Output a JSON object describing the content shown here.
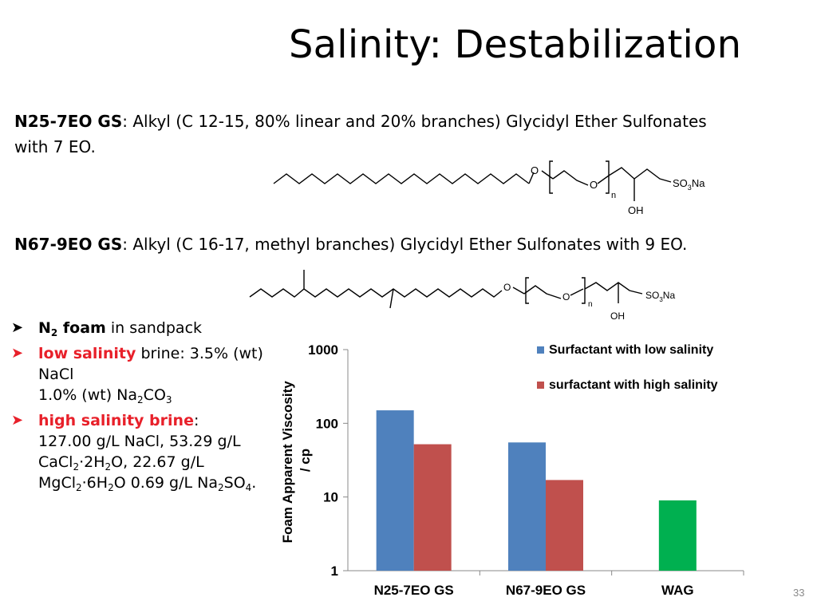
{
  "slide": {
    "title": "Salinity: Destabilization",
    "page_number": "33"
  },
  "n25": {
    "name": "N25-7EO GS",
    "desc": ": Alkyl (C 12-15, 80% linear and 20% branches) Glycidyl Ether Sulfonates",
    "desc2": "with 7 EO."
  },
  "n67": {
    "name": "N67-9EO GS",
    "desc": ": Alkyl (C 16-17, methyl branches) Glycidyl Ether Sulfonates with 9 EO."
  },
  "molecules": {
    "o": "O",
    "n": "n",
    "oh": "OH",
    "so3na_a": "SO",
    "so3na_b": "3",
    "so3na_c": "Na"
  },
  "bullets": {
    "b1_a": "N",
    "b1_b": "2",
    "b1_c": " foam",
    "b1_d": " in sandpack",
    "b2_a": "low salinity",
    "b2_b": " brine: 3.5% (wt) NaCl",
    "b2_c": "1.0% (wt) Na",
    "b2_d": "2",
    "b2_e": "CO",
    "b2_f": "3",
    "b3_a": "high salinity brine",
    "b3_b": ":",
    "b3_c": "127.00 g/L NaCl, 53.29 g/L CaCl",
    "b3_d": "2",
    "b3_e": "·2H",
    "b3_f": "2",
    "b3_g": "O, 22.67 g/L MgCl",
    "b3_h": "2",
    "b3_i": "·6H",
    "b3_j": "2",
    "b3_k": "O 0.69 g/L Na",
    "b3_l": "2",
    "b3_m": "SO",
    "b3_n": "4",
    "b3_o": "."
  },
  "chart_data": {
    "type": "bar",
    "ylabel": "Foam Apparent Viscosity / cp",
    "yscale": "log",
    "ylim": [
      1,
      1000
    ],
    "yticks": [
      "1",
      "10",
      "100",
      "1000"
    ],
    "categories": [
      "N25-7EO GS",
      "N67-9EO GS",
      "WAG"
    ],
    "legend_position": "top-right",
    "series": [
      {
        "name": "Surfactant with low salinity",
        "color": "#4f81bd",
        "values": [
          150,
          55,
          null
        ]
      },
      {
        "name": "surfactant with high salinity",
        "color": "#c0504d",
        "values": [
          52,
          17,
          null
        ]
      },
      {
        "name": "",
        "color": "#00b050",
        "values": [
          null,
          null,
          9
        ]
      }
    ]
  }
}
